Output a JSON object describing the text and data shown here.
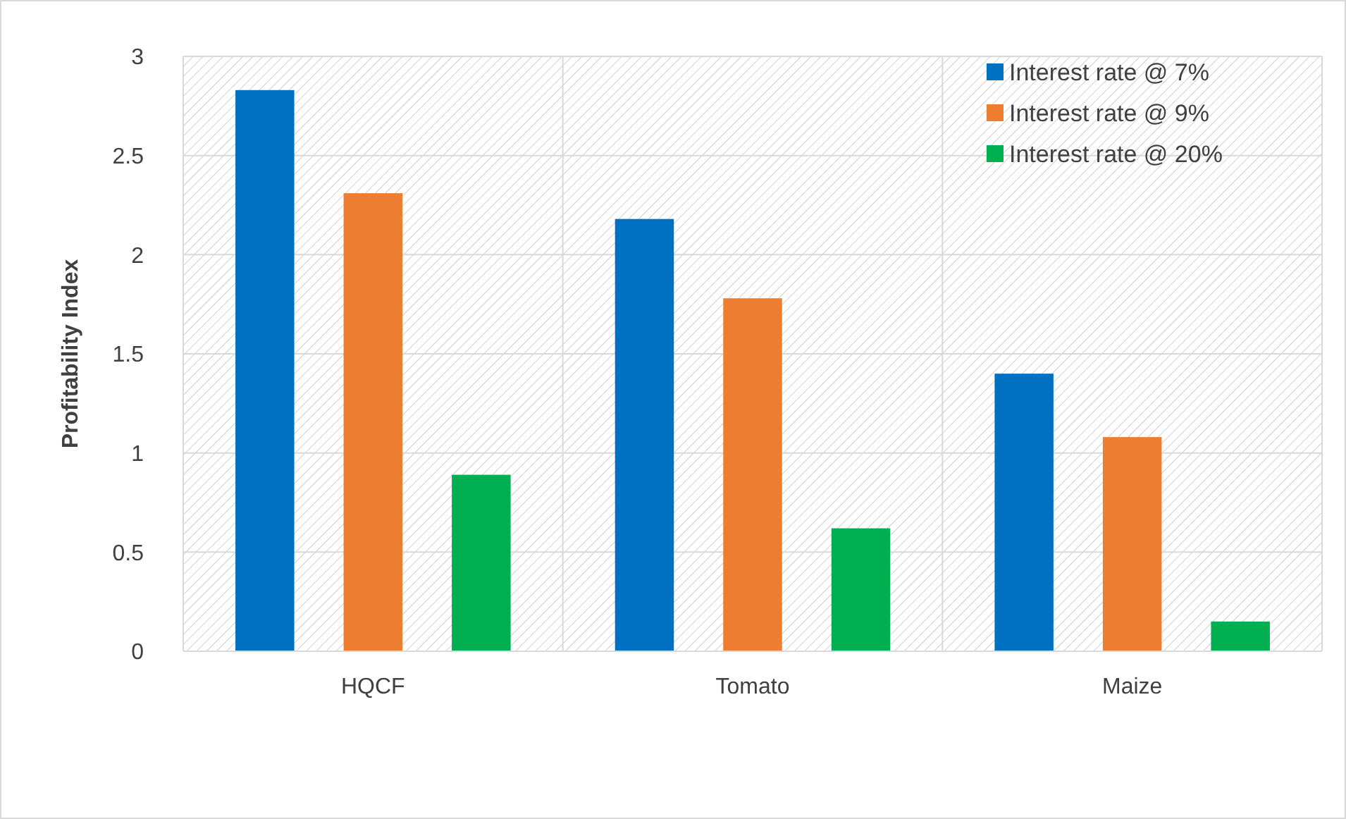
{
  "chart_data": {
    "type": "bar",
    "ylabel": "Profitability Index",
    "categories": [
      "HQCF",
      "Tomato",
      "Maize"
    ],
    "series": [
      {
        "name": "Interest rate @ 7%",
        "color": "#0070c0",
        "values": [
          2.83,
          2.18,
          1.4
        ]
      },
      {
        "name": "Interest rate @ 9%",
        "color": "#ed7d31",
        "values": [
          2.31,
          1.78,
          1.08
        ]
      },
      {
        "name": "Interest rate @ 20%",
        "color": "#00b050",
        "values": [
          0.89,
          0.62,
          0.15
        ]
      }
    ],
    "ylim": [
      0,
      3
    ],
    "yticks": [
      0,
      0.5,
      1,
      1.5,
      2,
      2.5,
      3
    ],
    "grid": true,
    "legend": "top right"
  }
}
